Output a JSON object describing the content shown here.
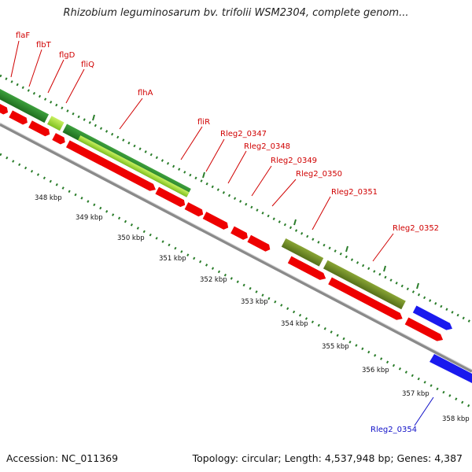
{
  "title": "Rhizobium leguminosarum bv. trifolii WSM2304, complete genom...",
  "accession": "Accession: NC_011369",
  "summary": "Topology: circular; Length: 4,537,948 bp; Genes: 4,387",
  "colors": {
    "backbone": "#8a8a8a",
    "cds_forward": "#ee0000",
    "cds_reverse": "#1a1aee",
    "gc_skew_dots": "#1f7a1f",
    "gene_label": "#d00000",
    "gene_label_blue": "#1010c8",
    "green_dark": "#2e8b2e",
    "green_light": "#9bd43a",
    "green_olive": "#6f8a25"
  },
  "gene_labels": [
    {
      "id": "flaF",
      "text": "flaF",
      "color": "red"
    },
    {
      "id": "flbT",
      "text": "flbT",
      "color": "red"
    },
    {
      "id": "flgD",
      "text": "flgD",
      "color": "red"
    },
    {
      "id": "fliQ",
      "text": "fliQ",
      "color": "red"
    },
    {
      "id": "flhA",
      "text": "flhA",
      "color": "red"
    },
    {
      "id": "fliR",
      "text": "fliR",
      "color": "red"
    },
    {
      "id": "Rleg2_0347",
      "text": "Rleg2_0347",
      "color": "red"
    },
    {
      "id": "Rleg2_0348",
      "text": "Rleg2_0348",
      "color": "red"
    },
    {
      "id": "Rleg2_0349",
      "text": "Rleg2_0349",
      "color": "red"
    },
    {
      "id": "Rleg2_0350",
      "text": "Rleg2_0350",
      "color": "red"
    },
    {
      "id": "Rleg2_0351",
      "text": "Rleg2_0351",
      "color": "red"
    },
    {
      "id": "Rleg2_0352",
      "text": "Rleg2_0352",
      "color": "red"
    },
    {
      "id": "Rleg2_0354",
      "text": "Rleg2_0354",
      "color": "blue"
    }
  ],
  "scale_ticks": [
    "348 kbp",
    "349 kbp",
    "350 kbp",
    "351 kbp",
    "352 kbp",
    "353 kbp",
    "354 kbp",
    "355 kbp",
    "356 kbp",
    "357 kbp",
    "358 kbp"
  ]
}
